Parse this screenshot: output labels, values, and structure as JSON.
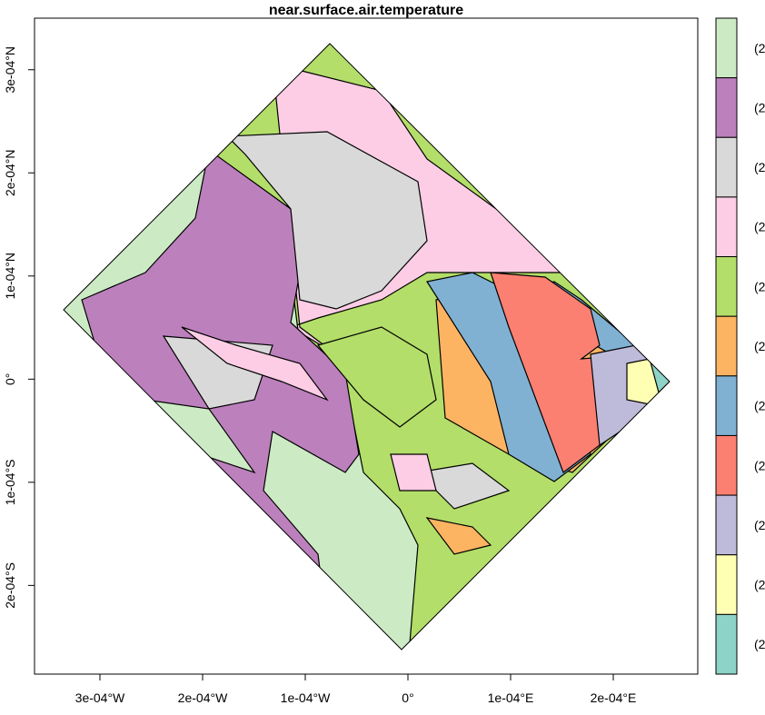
{
  "map": {
    "title": "near.surface.air.temperature",
    "xlim": [
      -0.0003637,
      0.0002823
    ],
    "ylim": [
      -0.000286,
      0.00035
    ],
    "xticks": [
      {
        "value": -0.0003,
        "label": "3e-04°W"
      },
      {
        "value": -0.0002,
        "label": "2e-04°W"
      },
      {
        "value": -0.0001,
        "label": "1e-04°W"
      },
      {
        "value": 0,
        "label": "0°"
      },
      {
        "value": 0.0001,
        "label": "1e-04°E"
      },
      {
        "value": 0.0002,
        "label": "2e-04°E"
      }
    ],
    "yticks": [
      {
        "value": 0.0003,
        "label": "3e-04°N"
      },
      {
        "value": 0.0002,
        "label": "2e-04°N"
      },
      {
        "value": 0.0001,
        "label": "1e-04°N"
      },
      {
        "value": 0,
        "label": "0°"
      },
      {
        "value": -0.0001,
        "label": "1e-04°S"
      },
      {
        "value": -0.0002,
        "label": "2e-04°S"
      }
    ],
    "legend": [
      {
        "label": "(2",
        "color": "#ccebc5"
      },
      {
        "label": "(2",
        "color": "#bc80bd"
      },
      {
        "label": "(2",
        "color": "#d9d9d9"
      },
      {
        "label": "(2",
        "color": "#fccde5"
      },
      {
        "label": "(2",
        "color": "#b3de69"
      },
      {
        "label": "(2",
        "color": "#fdb462"
      },
      {
        "label": "(2",
        "color": "#80b1d3"
      },
      {
        "label": "(2",
        "color": "#fb8072"
      },
      {
        "label": "(2",
        "color": "#bebada"
      },
      {
        "label": "(2",
        "color": "#ffffb3"
      },
      {
        "label": "(2",
        "color": "#8dd3c7"
      }
    ]
  }
}
